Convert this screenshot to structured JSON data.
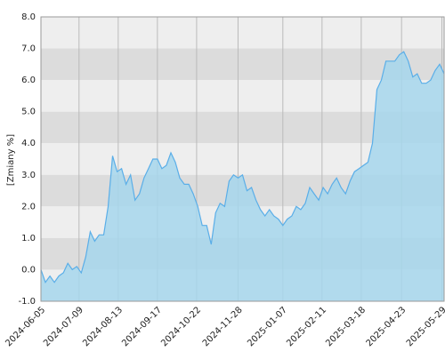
{
  "chart_data": {
    "type": "area",
    "y_label": "[Zmiany %]",
    "x": [
      "2024-06-05",
      "2024-06-09",
      "2024-06-13",
      "2024-06-17",
      "2024-06-21",
      "2024-06-25",
      "2024-06-29",
      "2024-07-03",
      "2024-07-07",
      "2024-07-11",
      "2024-07-15",
      "2024-07-19",
      "2024-07-23",
      "2024-07-27",
      "2024-07-31",
      "2024-08-04",
      "2024-08-08",
      "2024-08-12",
      "2024-08-16",
      "2024-08-20",
      "2024-08-24",
      "2024-08-28",
      "2024-09-01",
      "2024-09-05",
      "2024-09-09",
      "2024-09-13",
      "2024-09-17",
      "2024-09-21",
      "2024-09-25",
      "2024-09-29",
      "2024-10-03",
      "2024-10-07",
      "2024-10-11",
      "2024-10-15",
      "2024-10-19",
      "2024-10-23",
      "2024-10-27",
      "2024-10-31",
      "2024-11-04",
      "2024-11-08",
      "2024-11-12",
      "2024-11-16",
      "2024-11-20",
      "2024-11-24",
      "2024-11-28",
      "2024-12-02",
      "2024-12-06",
      "2024-12-10",
      "2024-12-14",
      "2024-12-18",
      "2024-12-22",
      "2024-12-26",
      "2024-12-30",
      "2025-01-03",
      "2025-01-07",
      "2025-01-11",
      "2025-01-15",
      "2025-01-19",
      "2025-01-23",
      "2025-01-27",
      "2025-01-31",
      "2025-02-04",
      "2025-02-08",
      "2025-02-12",
      "2025-02-16",
      "2025-02-20",
      "2025-02-24",
      "2025-02-28",
      "2025-03-04",
      "2025-03-08",
      "2025-03-12",
      "2025-03-16",
      "2025-03-20",
      "2025-03-24",
      "2025-03-28",
      "2025-04-01",
      "2025-04-05",
      "2025-04-09",
      "2025-04-13",
      "2025-04-17",
      "2025-04-21",
      "2025-04-25",
      "2025-04-29",
      "2025-05-03",
      "2025-05-07",
      "2025-05-11",
      "2025-05-15",
      "2025-05-19",
      "2025-05-23",
      "2025-05-27",
      "2025-05-31"
    ],
    "series": [
      {
        "color": "#5aaee8",
        "fill": "#a6d6ec",
        "values": [
          0.0,
          -0.4,
          -0.2,
          -0.4,
          -0.2,
          -0.1,
          0.2,
          0.0,
          0.1,
          -0.1,
          0.4,
          1.2,
          0.9,
          1.1,
          1.1,
          2.0,
          3.6,
          3.1,
          3.2,
          2.7,
          3.0,
          2.2,
          2.4,
          2.9,
          3.2,
          3.5,
          3.5,
          3.2,
          3.3,
          3.7,
          3.4,
          2.9,
          2.7,
          2.7,
          2.4,
          2.0,
          1.4,
          1.4,
          0.8,
          1.8,
          2.1,
          2.0,
          2.8,
          3.0,
          2.9,
          3.0,
          2.5,
          2.6,
          2.2,
          1.9,
          1.7,
          1.9,
          1.7,
          1.6,
          1.4,
          1.6,
          1.7,
          2.0,
          1.9,
          2.1,
          2.6,
          2.4,
          2.2,
          2.6,
          2.4,
          2.7,
          2.9,
          2.6,
          2.4,
          2.8,
          3.1,
          3.2,
          3.3,
          3.4,
          4.0,
          5.7,
          6.0,
          6.6,
          6.6,
          6.6,
          6.8,
          6.9,
          6.6,
          6.1,
          6.2,
          5.9,
          5.9,
          6.0,
          6.3,
          6.5,
          6.2
        ]
      }
    ],
    "xlim": [
      "2024-06-05",
      "2025-05-31"
    ],
    "xticks": [
      "2024-06-05",
      "2024-07-09",
      "2024-08-13",
      "2024-09-17",
      "2024-10-22",
      "2024-11-28",
      "2025-01-07",
      "2025-02-11",
      "2025-03-18",
      "2025-04-23",
      "2025-05-29"
    ],
    "ylim": [
      -1,
      8
    ],
    "yticks": [
      {
        "value": 8,
        "label": "8.0"
      },
      {
        "value": 7,
        "label": "7.0"
      },
      {
        "value": 6,
        "label": "6.0"
      },
      {
        "value": 5,
        "label": "5.0"
      },
      {
        "value": 4,
        "label": "4.0"
      },
      {
        "value": 3,
        "label": "3.0"
      },
      {
        "value": 2,
        "label": "2.0"
      },
      {
        "value": 1,
        "label": "1.0"
      },
      {
        "value": 0,
        "label": "0.0"
      },
      {
        "value": -1,
        "label": "-1.0"
      }
    ],
    "band_colors": [
      "#eeeeee",
      "#dcdcdc"
    ],
    "grid": true
  }
}
